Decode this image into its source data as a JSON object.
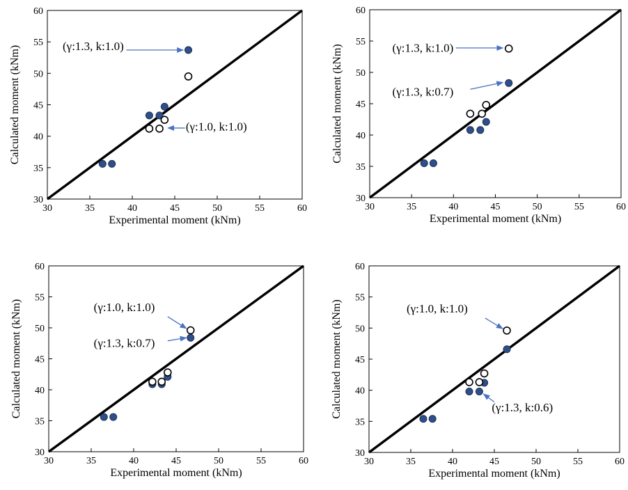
{
  "colors": {
    "filled": "#2f4f8a",
    "filled_stroke": "#1b2f52",
    "arrow": "#4a72c4",
    "line": "#000000"
  },
  "chart_data": [
    {
      "type": "scatter",
      "xlabel": "Experimental moment (kNm)",
      "ylabel": "Calculated moment (kNm)",
      "xlim": [
        30,
        60
      ],
      "ylim": [
        30,
        60
      ],
      "xticks": [
        30,
        35,
        40,
        45,
        50,
        55,
        60
      ],
      "yticks": [
        30,
        35,
        40,
        45,
        50,
        55,
        60
      ],
      "reference_line": [
        [
          30,
          30
        ],
        [
          60,
          60
        ]
      ],
      "series": [
        {
          "marker": "filled",
          "points": [
            [
              36.5,
              35.6
            ],
            [
              37.6,
              35.6
            ],
            [
              42.0,
              43.3
            ],
            [
              43.2,
              43.3
            ],
            [
              43.8,
              44.7
            ],
            [
              46.6,
              53.7
            ]
          ]
        },
        {
          "marker": "hollow",
          "points": [
            [
              42.0,
              41.2
            ],
            [
              43.2,
              41.2
            ],
            [
              43.8,
              42.6
            ],
            [
              46.6,
              49.5
            ]
          ]
        }
      ],
      "annotations": [
        {
          "text": "(γ:1.3, k:1.0)",
          "tx": 39.0,
          "ty": 53.7,
          "anchor": "end",
          "arrow_from": [
            39.3,
            53.7
          ],
          "arrow_to": [
            46.0,
            53.7
          ]
        },
        {
          "text": "(γ:1.0, k:1.0)",
          "tx": 46.3,
          "ty": 40.9,
          "anchor": "start",
          "arrow_from": [
            46.2,
            41.3
          ],
          "arrow_to": [
            44.2,
            41.3
          ]
        }
      ]
    },
    {
      "type": "scatter",
      "xlabel": "Experimental moment (kNm)",
      "ylabel": "Calculated moment (kNm)",
      "xlim": [
        30,
        60
      ],
      "ylim": [
        30,
        60
      ],
      "xticks": [
        30,
        35,
        40,
        45,
        50,
        55,
        60
      ],
      "yticks": [
        30,
        35,
        40,
        45,
        50,
        55,
        60
      ],
      "reference_line": [
        [
          30,
          30
        ],
        [
          60,
          60
        ]
      ],
      "series": [
        {
          "marker": "filled",
          "points": [
            [
              36.5,
              35.5
            ],
            [
              37.6,
              35.5
            ],
            [
              42.0,
              40.8
            ],
            [
              43.2,
              40.8
            ],
            [
              43.9,
              42.1
            ],
            [
              46.6,
              48.3
            ]
          ]
        },
        {
          "marker": "hollow",
          "points": [
            [
              42.0,
              43.4
            ],
            [
              43.4,
              43.4
            ],
            [
              43.9,
              44.8
            ],
            [
              46.6,
              53.8
            ]
          ]
        }
      ],
      "annotations": [
        {
          "text": "(γ:1.3, k:1.0)",
          "tx": 40.0,
          "ty": 53.3,
          "anchor": "end",
          "arrow_from": [
            40.3,
            53.9
          ],
          "arrow_to": [
            45.9,
            53.9
          ]
        },
        {
          "text": "(γ:1.3, k:0.7)",
          "tx": 40.0,
          "ty": 46.3,
          "anchor": "end",
          "arrow_from": [
            42.0,
            47.3
          ],
          "arrow_to": [
            45.9,
            48.4
          ]
        }
      ]
    },
    {
      "type": "scatter",
      "xlabel": "Experimental moment (kNm)",
      "ylabel": "Calculated moment (kNm)",
      "xlim": [
        30,
        60
      ],
      "ylim": [
        30,
        60
      ],
      "xticks": [
        30,
        35,
        40,
        45,
        50,
        55,
        60
      ],
      "yticks": [
        30,
        35,
        40,
        45,
        50,
        55,
        60
      ],
      "reference_line": [
        [
          30,
          30
        ],
        [
          60,
          60
        ]
      ],
      "series": [
        {
          "marker": "filled",
          "points": [
            [
              36.5,
              35.6
            ],
            [
              37.6,
              35.6
            ],
            [
              42.2,
              40.9
            ],
            [
              43.3,
              40.9
            ],
            [
              44.0,
              42.1
            ],
            [
              46.7,
              48.4
            ]
          ]
        },
        {
          "marker": "hollow",
          "points": [
            [
              42.2,
              41.3
            ],
            [
              43.3,
              41.3
            ],
            [
              44.0,
              42.8
            ],
            [
              46.7,
              49.6
            ]
          ]
        }
      ],
      "annotations": [
        {
          "text": "(γ:1.0, k:1.0)",
          "tx": 35.3,
          "ty": 52.7,
          "anchor": "start",
          "arrow_from": [
            44.0,
            51.8
          ],
          "arrow_to": [
            46.2,
            49.9
          ]
        },
        {
          "text": "(γ:1.3, k:0.7)",
          "tx": 35.3,
          "ty": 46.9,
          "anchor": "start",
          "arrow_from": [
            44.0,
            47.9
          ],
          "arrow_to": [
            46.2,
            48.4
          ]
        }
      ]
    },
    {
      "type": "scatter",
      "xlabel": "Experimental moment (kNm)",
      "ylabel": "Calculated moment (kNm)",
      "xlim": [
        30,
        60
      ],
      "ylim": [
        30,
        60
      ],
      "xticks": [
        30,
        35,
        40,
        45,
        50,
        55,
        60
      ],
      "yticks": [
        30,
        35,
        40,
        45,
        50,
        55,
        60
      ],
      "reference_line": [
        [
          30,
          30
        ],
        [
          60,
          60
        ]
      ],
      "series": [
        {
          "marker": "filled",
          "points": [
            [
              36.5,
              35.4
            ],
            [
              37.6,
              35.4
            ],
            [
              42.0,
              39.8
            ],
            [
              43.2,
              39.8
            ],
            [
              43.8,
              41.2
            ],
            [
              46.5,
              46.6
            ]
          ]
        },
        {
          "marker": "hollow",
          "points": [
            [
              42.0,
              41.3
            ],
            [
              43.2,
              41.3
            ],
            [
              43.8,
              42.7
            ],
            [
              46.5,
              49.6
            ]
          ]
        }
      ],
      "annotations": [
        {
          "text": "(γ:1.0, k:1.0)",
          "tx": 34.5,
          "ty": 52.5,
          "anchor": "start",
          "arrow_from": [
            43.9,
            51.6
          ],
          "arrow_to": [
            46.0,
            49.9
          ]
        },
        {
          "text": "(γ:1.3, k:0.6)",
          "tx": 44.7,
          "ty": 36.6,
          "anchor": "start",
          "arrow_from": [
            45.0,
            38.1
          ],
          "arrow_to": [
            43.7,
            39.4
          ]
        }
      ]
    }
  ]
}
